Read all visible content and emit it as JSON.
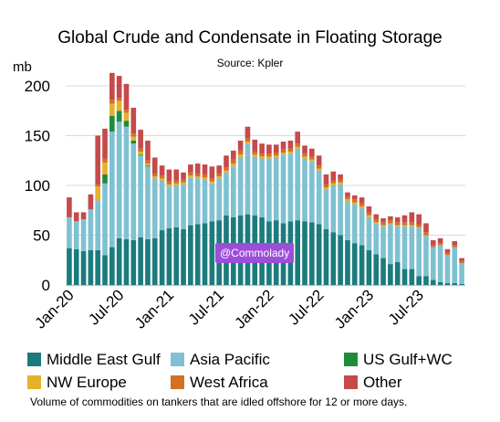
{
  "chart_data": {
    "type": "bar",
    "stacked": true,
    "title": "Global Crude and Condensate in Floating Storage",
    "subtitle": "Source: Kpler",
    "ylabel": "mb",
    "ylim": [
      0,
      200
    ],
    "yticks": [
      0,
      50,
      100,
      150,
      200
    ],
    "grid": true,
    "legend_position": "bottom",
    "x_tick_labels": [
      "Jan-20",
      "Jul-20",
      "Jan-21",
      "Jul-21",
      "Jan-22",
      "Jul-22",
      "Jan-23",
      "Jul-23"
    ],
    "x_tick_index": [
      0,
      7,
      14,
      21,
      28,
      35,
      42,
      49
    ],
    "series": [
      {
        "name": "Middle East Gulf",
        "color": "#1b7b7d",
        "values": [
          37,
          36,
          34,
          35,
          35,
          30,
          38,
          47,
          46,
          45,
          48,
          46,
          47,
          55,
          57,
          58,
          56,
          60,
          61,
          62,
          64,
          65,
          70,
          68,
          70,
          71,
          70,
          68,
          64,
          65,
          62,
          64,
          65,
          64,
          63,
          61,
          56,
          53,
          50,
          45,
          42,
          40,
          35,
          31,
          27,
          21,
          23,
          16,
          16,
          9,
          9,
          5,
          3,
          2,
          2,
          1
        ]
      },
      {
        "name": "Asia Pacific",
        "color": "#7fc1d1",
        "values": [
          31,
          28,
          32,
          41,
          50,
          72,
          116,
          117,
          113,
          97,
          82,
          73,
          60,
          50,
          42,
          42,
          45,
          48,
          46,
          44,
          38,
          42,
          43,
          51,
          58,
          71,
          59,
          59,
          63,
          63,
          69,
          68,
          72,
          63,
          61,
          54,
          40,
          47,
          51,
          39,
          39,
          37,
          33,
          31,
          32,
          40,
          36,
          43,
          43,
          48,
          40,
          33,
          37,
          28,
          36,
          21
        ]
      },
      {
        "name": "US Gulf+WC",
        "color": "#1e8c3b",
        "values": [
          0,
          0,
          0,
          0,
          0,
          9,
          16,
          11,
          6,
          3,
          1,
          1,
          0,
          0,
          0,
          0,
          0,
          0,
          0,
          0,
          0,
          0,
          0,
          0,
          0,
          0,
          0,
          0,
          0,
          0,
          0,
          0,
          0,
          0,
          0,
          0,
          0,
          0,
          0,
          0,
          0,
          0,
          0,
          0,
          0,
          0,
          0,
          0,
          0,
          0,
          0,
          0,
          0,
          0,
          0,
          0
        ]
      },
      {
        "name": "NW Europe",
        "color": "#e6b12b",
        "values": [
          0,
          0,
          0,
          0,
          14,
          12,
          12,
          10,
          8,
          4,
          3,
          2,
          2,
          2,
          2,
          2,
          2,
          2,
          2,
          2,
          2,
          2,
          2,
          3,
          3,
          2,
          2,
          2,
          2,
          2,
          2,
          2,
          2,
          2,
          2,
          2,
          2,
          2,
          2,
          2,
          2,
          2,
          2,
          1,
          1,
          1,
          1,
          1,
          1,
          1,
          1,
          0,
          0,
          0,
          0,
          0
        ]
      },
      {
        "name": "West Africa",
        "color": "#d27023",
        "values": [
          0,
          0,
          0,
          0,
          2,
          4,
          4,
          3,
          3,
          3,
          3,
          3,
          3,
          3,
          3,
          3,
          3,
          3,
          3,
          3,
          3,
          3,
          3,
          4,
          4,
          3,
          3,
          3,
          3,
          3,
          3,
          3,
          3,
          3,
          3,
          3,
          3,
          3,
          3,
          3,
          3,
          3,
          3,
          3,
          3,
          3,
          3,
          3,
          3,
          3,
          3,
          2,
          2,
          2,
          2,
          2
        ]
      },
      {
        "name": "Other",
        "color": "#c6494b",
        "values": [
          20,
          9,
          7,
          15,
          49,
          30,
          27,
          22,
          26,
          26,
          19,
          20,
          16,
          10,
          12,
          11,
          7,
          8,
          10,
          10,
          12,
          8,
          12,
          9,
          10,
          12,
          12,
          10,
          9,
          8,
          8,
          8,
          12,
          8,
          8,
          10,
          10,
          9,
          5,
          4,
          4,
          6,
          6,
          5,
          4,
          4,
          5,
          7,
          10,
          10,
          9,
          5,
          5,
          4,
          4,
          3
        ]
      }
    ]
  },
  "legend": {
    "items": [
      {
        "label": "Middle East Gulf",
        "color": "#1b7b7d"
      },
      {
        "label": "Asia Pacific",
        "color": "#7fc1d1"
      },
      {
        "label": "US Gulf+WC",
        "color": "#1e8c3b"
      },
      {
        "label": "NW Europe",
        "color": "#e6b12b"
      },
      {
        "label": "West Africa",
        "color": "#d27023"
      },
      {
        "label": "Other",
        "color": "#c6494b"
      }
    ]
  },
  "footnote": "Volume of commodities on tankers that are idled offshore for 12 or more days.",
  "watermark": "@Commolady"
}
